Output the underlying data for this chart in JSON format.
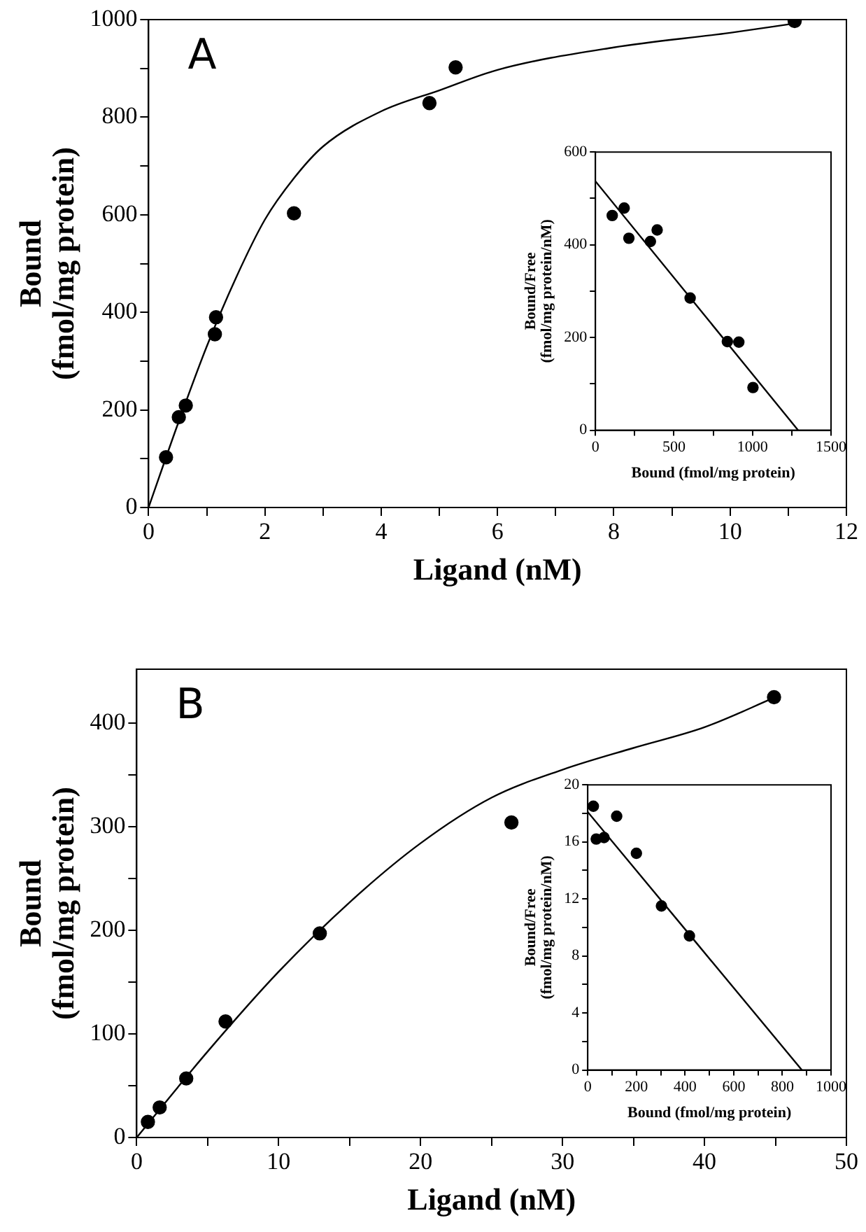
{
  "chart_data": [
    {
      "type": "scatter",
      "annotations": [
        "A"
      ],
      "xlabel": "Ligand (nM)",
      "ylabel": "Bound\n(fmol/mg protein)",
      "xlim": [
        0,
        12
      ],
      "ylim": [
        0,
        1000
      ],
      "xticks": [
        0,
        {
          "value": 1,
          "label": null
        },
        2,
        {
          "value": 3,
          "label": null
        },
        4,
        {
          "value": 5,
          "label": null
        },
        6,
        {
          "value": 7,
          "label": null
        },
        8,
        {
          "value": 9,
          "label": null
        },
        10,
        {
          "value": 11,
          "label": null
        },
        12
      ],
      "yticks": [
        0,
        {
          "value": 100,
          "label": null
        },
        200,
        {
          "value": 300,
          "label": null
        },
        400,
        {
          "value": 500,
          "label": null
        },
        600,
        {
          "value": 700,
          "label": null
        },
        800,
        {
          "value": 900,
          "label": null
        },
        1000
      ],
      "grid": false,
      "legend": false,
      "marker": "circle",
      "series": [
        {
          "color": "#000000",
          "x": [
            0.3,
            0.52,
            0.64,
            1.14,
            1.16,
            2.5,
            4.83,
            5.28,
            11.11
          ],
          "values": [
            103,
            185,
            209,
            355,
            390,
            603,
            829,
            902,
            997
          ]
        },
        {
          "type": "line",
          "marker": "none",
          "color": "#000000",
          "x": [
            0,
            0.5,
            1,
            1.5,
            2,
            2.5,
            3,
            4,
            5,
            6,
            8,
            10,
            11.1
          ],
          "values": [
            0,
            170,
            330,
            470,
            590,
            675,
            740,
            812,
            855,
            897,
            943,
            973,
            992
          ]
        }
      ]
    },
    {
      "type": "scatter",
      "xlabel": "Bound (fmol/mg protein)",
      "ylabel": "Bound/Free\n(fmol/mg protein/nM)",
      "xlim": [
        0,
        1500
      ],
      "ylim": [
        0,
        600
      ],
      "xticks": [
        0,
        {
          "value": 250,
          "label": null
        },
        500,
        {
          "value": 750,
          "label": null
        },
        1000,
        {
          "value": 1250,
          "label": null
        },
        1500
      ],
      "yticks": [
        0,
        {
          "value": 100,
          "label": null
        },
        200,
        {
          "value": 300,
          "label": null
        },
        400,
        {
          "value": 500,
          "label": null
        },
        600
      ],
      "grid": false,
      "legend": false,
      "marker": "circle",
      "series": [
        {
          "color": "#000000",
          "x": [
            107,
            183,
            213,
            350,
            393,
            603,
            840,
            913,
            1003
          ],
          "values": [
            463,
            479,
            414,
            407,
            432,
            285,
            191,
            190,
            92
          ]
        },
        {
          "type": "line",
          "marker": "none",
          "color": "#000000",
          "x": [
            0,
            1290
          ],
          "values": [
            537,
            0
          ]
        }
      ]
    },
    {
      "type": "scatter",
      "annotations": [
        "B"
      ],
      "xlabel": "Ligand (nM)",
      "ylabel": "Bound\n(fmol/mg protein)",
      "xlim": [
        0,
        50
      ],
      "ylim": [
        0,
        452
      ],
      "xticks": [
        0,
        {
          "value": 5,
          "label": null
        },
        10,
        {
          "value": 15,
          "label": null
        },
        20,
        {
          "value": 25,
          "label": null
        },
        30,
        {
          "value": 35,
          "label": null
        },
        40,
        {
          "value": 45,
          "label": null
        },
        50
      ],
      "yticks": [
        0,
        {
          "value": 50,
          "label": null
        },
        100,
        {
          "value": 150,
          "label": null
        },
        200,
        {
          "value": 250,
          "label": null
        },
        300,
        {
          "value": 350,
          "label": null
        },
        400
      ],
      "grid": false,
      "legend": false,
      "marker": "circle",
      "series": [
        {
          "color": "#000000",
          "x": [
            0.79,
            1.62,
            3.49,
            6.26,
            12.9,
            26.4,
            44.9
          ],
          "values": [
            15,
            29,
            57,
            112,
            197,
            304,
            425
          ]
        },
        {
          "type": "line",
          "marker": "none",
          "color": "#000000",
          "x": [
            0,
            5,
            10,
            15,
            20,
            25,
            30,
            35,
            40,
            45
          ],
          "values": [
            0,
            83,
            160,
            227,
            284,
            328,
            355,
            376,
            396,
            425
          ]
        }
      ]
    },
    {
      "type": "scatter",
      "xlabel": "Bound (fmol/mg protein)",
      "ylabel": "Bound/Free\n(fmol/mg protein/nM)",
      "xlim": [
        0,
        1000
      ],
      "ylim": [
        0,
        20
      ],
      "xticks": [
        0,
        {
          "value": 100,
          "label": null
        },
        200,
        {
          "value": 300,
          "label": null
        },
        400,
        {
          "value": 500,
          "label": null
        },
        600,
        {
          "value": 700,
          "label": null
        },
        800,
        {
          "value": 900,
          "label": null
        },
        1000
      ],
      "yticks": [
        0,
        {
          "value": 2,
          "label": null
        },
        4,
        {
          "value": 6,
          "label": null
        },
        8,
        {
          "value": 10,
          "label": null
        },
        12,
        {
          "value": 14,
          "label": null
        },
        16,
        {
          "value": 18,
          "label": null
        },
        20
      ],
      "grid": false,
      "legend": false,
      "marker": "circle",
      "series": [
        {
          "color": "#000000",
          "x": [
            23,
            35,
            67,
            119,
            200,
            303,
            418
          ],
          "values": [
            18.5,
            16.2,
            16.3,
            17.8,
            15.2,
            11.5,
            9.4
          ]
        },
        {
          "type": "line",
          "marker": "none",
          "color": "#000000",
          "x": [
            0,
            880
          ],
          "values": [
            18.1,
            0
          ]
        }
      ]
    }
  ]
}
